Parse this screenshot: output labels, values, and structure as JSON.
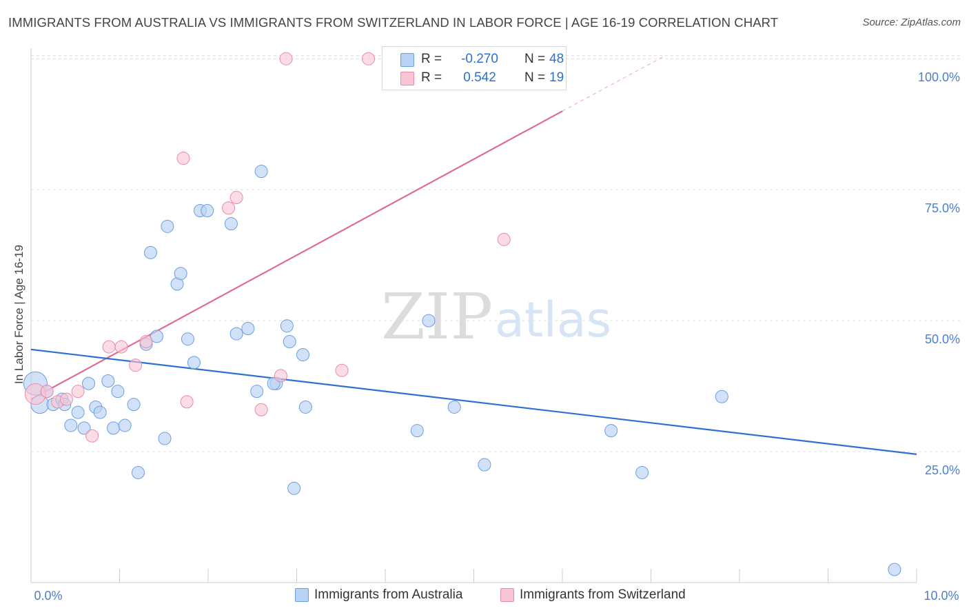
{
  "header": {
    "title": "IMMIGRANTS FROM AUSTRALIA VS IMMIGRANTS FROM SWITZERLAND IN LABOR FORCE | AGE 16-19 CORRELATION CHART",
    "source": "Source: ZipAtlas.com"
  },
  "watermark": {
    "zip": "ZIP",
    "atlas": "atlas"
  },
  "colors": {
    "australia_fill": "#b8d3f5",
    "australia_stroke": "#6a9ee0",
    "australia_line": "#2e6fd3",
    "switzerland_fill": "#f8c5d4",
    "switzerland_stroke": "#e98aa8",
    "switzerland_line": "#e06a93",
    "tick_label": "#4a7fd0",
    "grid": "#dddddd"
  },
  "legend": {
    "rows": [
      {
        "r_label": "R =",
        "r_value": "-0.270",
        "n_label": "N =",
        "n_value": "48"
      },
      {
        "r_label": "R =",
        "r_value": "0.542",
        "n_label": "N =",
        "n_value": "19"
      }
    ]
  },
  "chart_data": {
    "type": "scatter",
    "title": "IMMIGRANTS FROM AUSTRALIA VS IMMIGRANTS FROM SWITZERLAND IN LABOR FORCE | AGE 16-19 CORRELATION CHART",
    "xlabel": "",
    "ylabel": "In Labor Force | Age 16-19",
    "xlim": [
      0,
      10
    ],
    "ylim": [
      0,
      102
    ],
    "x_tick_labels": [
      "0.0%",
      "10.0%"
    ],
    "y_ticks": [
      25,
      50,
      75,
      100
    ],
    "y_tick_labels": [
      "25.0%",
      "50.0%",
      "75.0%",
      "100.0%"
    ],
    "grid": true,
    "legend_position": "bottom",
    "series": [
      {
        "name": "Immigrants from Australia",
        "points": [
          {
            "x": 0.05,
            "y": 38,
            "s": 17
          },
          {
            "x": 0.1,
            "y": 34,
            "s": 13
          },
          {
            "x": 0.18,
            "y": 36.5,
            "s": 9
          },
          {
            "x": 0.25,
            "y": 34,
            "s": 9
          },
          {
            "x": 0.35,
            "y": 35,
            "s": 9
          },
          {
            "x": 0.38,
            "y": 34,
            "s": 9
          },
          {
            "x": 0.45,
            "y": 30,
            "s": 9
          },
          {
            "x": 0.53,
            "y": 32.5,
            "s": 9
          },
          {
            "x": 0.6,
            "y": 29.5,
            "s": 9
          },
          {
            "x": 0.65,
            "y": 38,
            "s": 9
          },
          {
            "x": 0.73,
            "y": 33.5,
            "s": 9
          },
          {
            "x": 0.78,
            "y": 32.5,
            "s": 9
          },
          {
            "x": 0.87,
            "y": 38.5,
            "s": 9
          },
          {
            "x": 0.93,
            "y": 29.5,
            "s": 9
          },
          {
            "x": 0.98,
            "y": 36.5,
            "s": 9
          },
          {
            "x": 1.06,
            "y": 30,
            "s": 9
          },
          {
            "x": 1.16,
            "y": 34,
            "s": 9
          },
          {
            "x": 1.21,
            "y": 21,
            "s": 9
          },
          {
            "x": 1.3,
            "y": 45.5,
            "s": 9
          },
          {
            "x": 1.35,
            "y": 63,
            "s": 9
          },
          {
            "x": 1.42,
            "y": 47,
            "s": 9
          },
          {
            "x": 1.51,
            "y": 27.5,
            "s": 9
          },
          {
            "x": 1.54,
            "y": 68,
            "s": 9
          },
          {
            "x": 1.65,
            "y": 57,
            "s": 9
          },
          {
            "x": 1.69,
            "y": 59,
            "s": 9
          },
          {
            "x": 1.77,
            "y": 46.5,
            "s": 9
          },
          {
            "x": 1.84,
            "y": 42,
            "s": 9
          },
          {
            "x": 1.91,
            "y": 71,
            "s": 9
          },
          {
            "x": 1.99,
            "y": 71,
            "s": 9
          },
          {
            "x": 2.26,
            "y": 68.5,
            "s": 9
          },
          {
            "x": 2.32,
            "y": 47.5,
            "s": 9
          },
          {
            "x": 2.45,
            "y": 48.5,
            "s": 9
          },
          {
            "x": 2.55,
            "y": 36.5,
            "s": 9
          },
          {
            "x": 2.6,
            "y": 78.5,
            "s": 9
          },
          {
            "x": 2.77,
            "y": 38,
            "s": 9
          },
          {
            "x": 2.74,
            "y": 38,
            "s": 9
          },
          {
            "x": 2.89,
            "y": 49,
            "s": 9
          },
          {
            "x": 2.92,
            "y": 46,
            "s": 9
          },
          {
            "x": 2.97,
            "y": 18,
            "s": 9
          },
          {
            "x": 3.07,
            "y": 43.5,
            "s": 9
          },
          {
            "x": 3.1,
            "y": 33.5,
            "s": 9
          },
          {
            "x": 4.49,
            "y": 50,
            "s": 9
          },
          {
            "x": 4.36,
            "y": 29,
            "s": 9
          },
          {
            "x": 4.78,
            "y": 33.5,
            "s": 9
          },
          {
            "x": 5.12,
            "y": 22.5,
            "s": 9
          },
          {
            "x": 6.55,
            "y": 29,
            "s": 9
          },
          {
            "x": 6.9,
            "y": 21,
            "s": 9
          },
          {
            "x": 7.8,
            "y": 35.5,
            "s": 9
          },
          {
            "x": 9.75,
            "y": 2.5,
            "s": 9
          }
        ],
        "trend": {
          "x": [
            0,
            10
          ],
          "y": [
            44.5,
            24.5
          ]
        }
      },
      {
        "name": "Immigrants from Switzerland",
        "points": [
          {
            "x": 0.05,
            "y": 36,
            "s": 15
          },
          {
            "x": 0.18,
            "y": 36.5,
            "s": 9
          },
          {
            "x": 0.3,
            "y": 34.5,
            "s": 9
          },
          {
            "x": 0.4,
            "y": 35,
            "s": 9
          },
          {
            "x": 0.53,
            "y": 36.5,
            "s": 9
          },
          {
            "x": 0.69,
            "y": 28,
            "s": 9
          },
          {
            "x": 0.88,
            "y": 45,
            "s": 9
          },
          {
            "x": 1.02,
            "y": 45,
            "s": 9
          },
          {
            "x": 1.18,
            "y": 41.5,
            "s": 9
          },
          {
            "x": 1.3,
            "y": 46,
            "s": 9
          },
          {
            "x": 1.72,
            "y": 81,
            "s": 9
          },
          {
            "x": 1.76,
            "y": 34.5,
            "s": 9
          },
          {
            "x": 2.23,
            "y": 71.5,
            "s": 9
          },
          {
            "x": 2.32,
            "y": 73.5,
            "s": 9
          },
          {
            "x": 2.6,
            "y": 33,
            "s": 9
          },
          {
            "x": 2.82,
            "y": 39.5,
            "s": 9
          },
          {
            "x": 2.88,
            "y": 100,
            "s": 9
          },
          {
            "x": 3.51,
            "y": 40.5,
            "s": 9
          },
          {
            "x": 3.81,
            "y": 100,
            "s": 9
          },
          {
            "x": 5.34,
            "y": 65.5,
            "s": 9
          }
        ],
        "trend": {
          "x": [
            0,
            6
          ],
          "y": [
            35,
            90
          ]
        },
        "trend_extension": {
          "x": [
            6,
            7.15
          ],
          "y": [
            90,
            100.5
          ]
        }
      }
    ]
  },
  "bottom_legend": {
    "items": [
      {
        "label": "Immigrants from Australia"
      },
      {
        "label": "Immigrants from Switzerland"
      }
    ]
  }
}
